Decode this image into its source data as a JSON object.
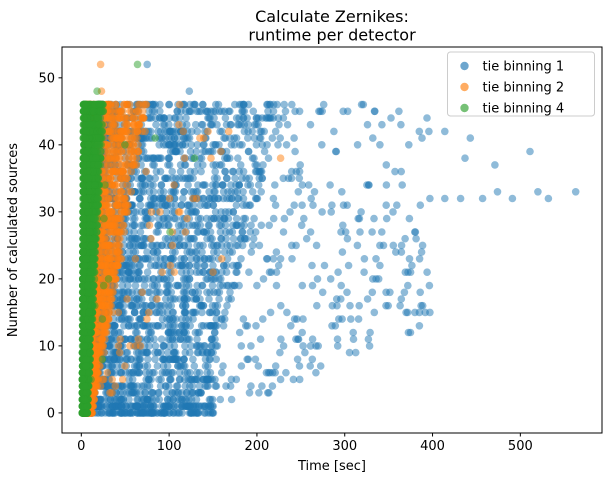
{
  "chart_data": {
    "type": "scatter",
    "title": "Calculate Zernikes:\nruntime per detector",
    "xlabel": "Time [sec]",
    "ylabel": "Number of calculated sources",
    "xlim": [
      -22,
      593
    ],
    "ylim": [
      -3,
      54.6
    ],
    "xticks": [
      0,
      100,
      200,
      300,
      400,
      500
    ],
    "yticks": [
      0,
      10,
      20,
      30,
      40,
      50
    ],
    "grid": false,
    "legend_position": "upper right",
    "marker": {
      "radius_px": 3.8,
      "alpha": 0.5
    },
    "series": [
      {
        "name": "tie binning 1",
        "color": "#1f77b4",
        "x_range_sec": [
          4,
          566
        ],
        "y_range_sources": [
          0,
          52
        ],
        "clusters": [
          {
            "kind": "wedge",
            "n": 2600,
            "y": [
              0,
              46
            ],
            "x0": 6,
            "xslope": 0.3,
            "w0": 130,
            "w1": 1.8,
            "pow": 2.2
          },
          {
            "kind": "wedge",
            "n": 140,
            "y": [
              0,
              1
            ],
            "x0": 5,
            "xslope": 0,
            "w0": 148,
            "w1": 0,
            "pow": 1.1
          },
          {
            "kind": "wedge",
            "n": 430,
            "y": [
              2,
              46
            ],
            "x0": 98,
            "xslope": 0,
            "w0": 62,
            "w1": 18,
            "pow": 1.15,
            "wcap": 300
          }
        ],
        "points": [
          [
            75,
            52
          ],
          [
            123,
            48
          ],
          [
            157,
            45
          ],
          [
            190,
            42
          ],
          [
            224,
            40
          ],
          [
            332,
            41
          ],
          [
            373,
            40
          ],
          [
            414,
            42
          ],
          [
            443,
            41
          ],
          [
            471,
            37
          ],
          [
            437,
            38
          ],
          [
            511,
            39
          ],
          [
            397,
            32
          ],
          [
            414,
            32
          ],
          [
            432,
            32
          ],
          [
            457,
            32
          ],
          [
            474,
            33
          ],
          [
            491,
            32
          ],
          [
            520,
            33
          ],
          [
            532,
            32
          ],
          [
            563,
            33
          ],
          [
            369,
            21
          ],
          [
            372,
            21
          ],
          [
            375,
            21
          ],
          [
            386,
            18
          ],
          [
            387,
            16
          ],
          [
            385,
            15
          ],
          [
            397,
            15
          ],
          [
            385,
            13
          ],
          [
            292,
            10
          ],
          [
            310,
            11
          ],
          [
            327,
            11
          ],
          [
            332,
            20
          ],
          [
            340,
            22
          ],
          [
            306,
            16
          ],
          [
            296,
            19
          ]
        ]
      },
      {
        "name": "tie binning 2",
        "color": "#ff7f0e",
        "x_range_sec": [
          2,
          227
        ],
        "y_range_sources": [
          0,
          52
        ],
        "clusters": [
          {
            "kind": "wedge",
            "n": 2000,
            "y": [
              0,
              46
            ],
            "x0": 2.5,
            "xslope": 0.05,
            "w0": 10,
            "w1": 1.3,
            "pow": 1.8
          },
          {
            "kind": "flare",
            "n": 55,
            "y": [
              3,
              44
            ],
            "x0": 2.5,
            "xslope": 0.05,
            "w0": 10,
            "w1": 1.3,
            "fmul": 1.6
          }
        ],
        "points": [
          [
            22,
            52
          ],
          [
            23,
            48
          ],
          [
            112,
            46
          ],
          [
            116,
            42
          ],
          [
            135,
            41
          ],
          [
            227,
            38
          ],
          [
            150,
            21
          ],
          [
            160,
            23
          ]
        ]
      },
      {
        "name": "tie binning 4",
        "color": "#2ca02c",
        "x_range_sec": [
          0.5,
          129
        ],
        "y_range_sources": [
          0,
          52
        ],
        "clusters": [
          {
            "kind": "wedge",
            "n": 2100,
            "y": [
              0,
              46
            ],
            "x0": 1,
            "xslope": 0.03,
            "w0": 6,
            "w1": 0.37,
            "pow": 1.5
          },
          {
            "kind": "flare",
            "n": 10,
            "y": [
              5,
              40
            ],
            "x0": 1,
            "xslope": 0.03,
            "w0": 6,
            "w1": 0.37,
            "fmul": 1.4
          }
        ],
        "points": [
          [
            64,
            52
          ],
          [
            18,
            48
          ],
          [
            129,
            38
          ],
          [
            101,
            27
          ],
          [
            84,
            41
          ]
        ]
      }
    ]
  },
  "legend": {
    "entries": [
      {
        "label": "tie binning 1",
        "color": "#1f77b4"
      },
      {
        "label": "tie binning 2",
        "color": "#ff7f0e"
      },
      {
        "label": "tie binning 4",
        "color": "#2ca02c"
      }
    ]
  },
  "style": {
    "spine_color": "#000000",
    "legend_border_color": "#cccccc",
    "background": "#ffffff"
  }
}
